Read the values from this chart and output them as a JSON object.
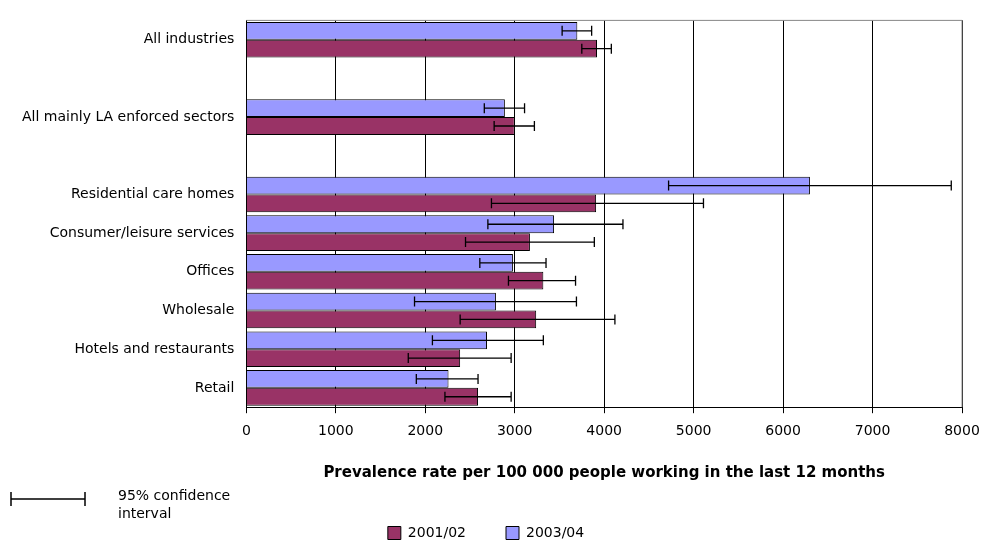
{
  "chart_data": {
    "type": "bar",
    "orientation": "horizontal",
    "xlabel": "Prevalence rate per 100 000 people working in the last 12 months",
    "categories": [
      "All industries",
      null,
      "All mainly LA enforced sectors",
      null,
      "Residential care homes",
      "Consumer/leisure services",
      "Offices",
      "Wholesale",
      "Hotels and restaurants",
      "Retail"
    ],
    "series": [
      {
        "name": "2003/04",
        "color": "#9999ff",
        "values": [
          3700,
          null,
          2890,
          null,
          6300,
          3440,
          2980,
          2790,
          2690,
          2260
        ],
        "errors": [
          [
            3530,
            3860
          ],
          null,
          [
            2660,
            3110
          ],
          null,
          [
            4720,
            7880
          ],
          [
            2700,
            4210
          ],
          [
            2610,
            3350
          ],
          [
            1880,
            3690
          ],
          [
            2080,
            3320
          ],
          [
            1900,
            2590
          ]
        ]
      },
      {
        "name": "2001/02",
        "color": "#993366",
        "values": [
          3920,
          null,
          3000,
          null,
          3910,
          3170,
          3320,
          3240,
          2390,
          2590
        ],
        "errors": [
          [
            3750,
            4080
          ],
          null,
          [
            2770,
            3220
          ],
          null,
          [
            2740,
            5110
          ],
          [
            2450,
            3890
          ],
          [
            2930,
            3680
          ],
          [
            2390,
            4120
          ],
          [
            1810,
            2960
          ],
          [
            2220,
            2960
          ]
        ]
      }
    ],
    "xlim": [
      0,
      8000
    ],
    "xticks": [
      0,
      1000,
      2000,
      3000,
      4000,
      5000,
      6000,
      7000,
      8000
    ],
    "grid": "x",
    "legend": "bottom",
    "annotations": [
      "95% confidence interval"
    ]
  }
}
